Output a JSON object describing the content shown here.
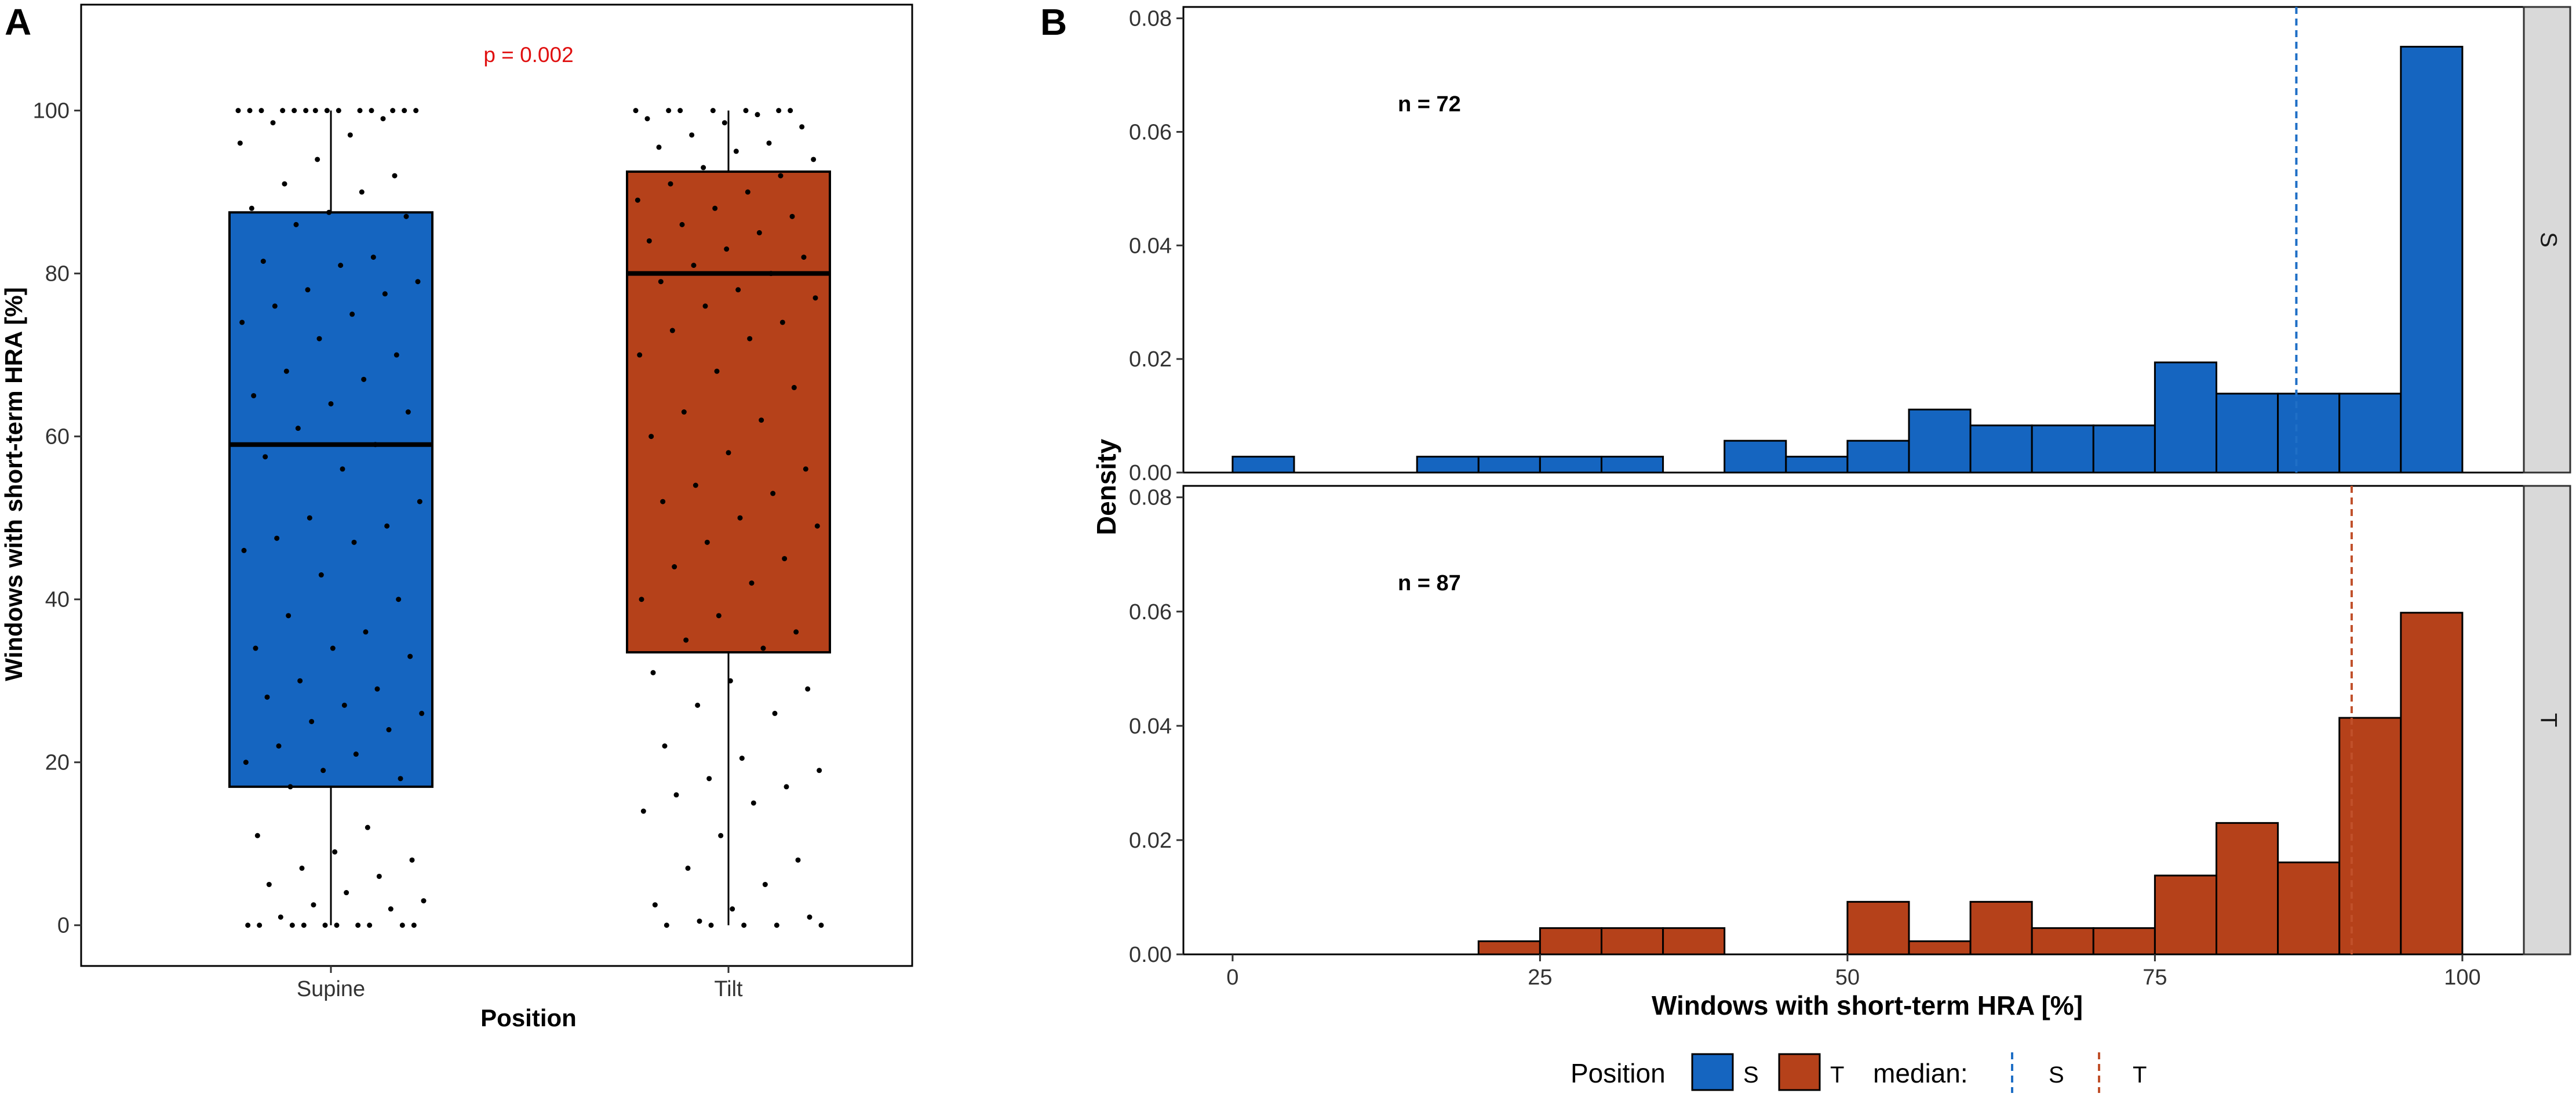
{
  "panel_a": {
    "letter": "A",
    "pvalue": "p = 0.002",
    "xlabel": "Position",
    "ylabel": "Windows with short-term HRA [%]",
    "chart_data": {
      "type": "box",
      "ylim": [
        -5,
        113
      ],
      "yticks": [
        0,
        20,
        40,
        60,
        80,
        100
      ],
      "categories": [
        "Supine",
        "Tilt"
      ],
      "boxes": [
        {
          "name": "Supine",
          "min": 0,
          "q1": 17,
          "median": 59,
          "q3": 87.5,
          "max": 100,
          "color": "#1565C0"
        },
        {
          "name": "Tilt",
          "min": 0,
          "q1": 33.5,
          "median": 80,
          "q3": 92.5,
          "max": 100,
          "color": "#B5411A"
        }
      ],
      "points": [
        [
          0,
          100
        ],
        [
          0,
          100
        ],
        [
          0,
          100
        ],
        [
          0,
          100
        ],
        [
          0,
          100
        ],
        [
          0,
          100
        ],
        [
          0,
          100
        ],
        [
          0,
          100
        ],
        [
          0,
          100
        ],
        [
          0,
          100
        ],
        [
          0,
          100
        ],
        [
          0,
          100
        ],
        [
          0,
          100
        ],
        [
          0,
          100
        ],
        [
          0,
          99
        ],
        [
          0,
          98.5
        ],
        [
          0,
          97
        ],
        [
          0,
          96
        ],
        [
          0,
          94
        ],
        [
          0,
          92
        ],
        [
          0,
          91
        ],
        [
          0,
          90
        ],
        [
          0,
          88
        ],
        [
          0,
          87.5
        ],
        [
          0,
          87
        ],
        [
          0,
          86
        ],
        [
          0,
          82
        ],
        [
          0,
          81.5
        ],
        [
          0,
          81
        ],
        [
          0,
          79
        ],
        [
          0,
          78
        ],
        [
          0,
          77.5
        ],
        [
          0,
          76
        ],
        [
          0,
          75
        ],
        [
          0,
          74
        ],
        [
          0,
          72
        ],
        [
          0,
          70
        ],
        [
          0,
          68
        ],
        [
          0,
          67
        ],
        [
          0,
          65
        ],
        [
          0,
          64
        ],
        [
          0,
          63
        ],
        [
          0,
          61
        ],
        [
          0,
          59
        ],
        [
          0,
          57.5
        ],
        [
          0,
          56
        ],
        [
          0,
          52
        ],
        [
          0,
          50
        ],
        [
          0,
          49
        ],
        [
          0,
          47.5
        ],
        [
          0,
          47
        ],
        [
          0,
          46
        ],
        [
          0,
          43
        ],
        [
          0,
          40
        ],
        [
          0,
          38
        ],
        [
          0,
          36
        ],
        [
          0,
          34
        ],
        [
          0,
          34
        ],
        [
          0,
          33
        ],
        [
          0,
          30
        ],
        [
          0,
          29
        ],
        [
          0,
          28
        ],
        [
          0,
          27
        ],
        [
          0,
          26
        ],
        [
          0,
          25
        ],
        [
          0,
          24
        ],
        [
          0,
          22
        ],
        [
          0,
          21
        ],
        [
          0,
          20
        ],
        [
          0,
          19
        ],
        [
          0,
          18
        ],
        [
          0,
          17
        ],
        [
          0,
          12
        ],
        [
          0,
          11
        ],
        [
          0,
          9
        ],
        [
          0,
          8
        ],
        [
          0,
          7
        ],
        [
          0,
          6
        ],
        [
          0,
          5
        ],
        [
          0,
          4
        ],
        [
          0,
          3
        ],
        [
          0,
          2.5
        ],
        [
          0,
          2
        ],
        [
          0,
          1
        ],
        [
          0,
          0
        ],
        [
          0,
          0
        ],
        [
          0,
          0
        ],
        [
          0,
          0
        ],
        [
          0,
          0
        ],
        [
          0,
          0
        ],
        [
          0,
          0
        ],
        [
          0,
          0
        ],
        [
          0,
          0
        ],
        [
          0,
          0
        ],
        [
          1,
          100
        ],
        [
          1,
          100
        ],
        [
          1,
          100
        ],
        [
          1,
          100
        ],
        [
          1,
          100
        ],
        [
          1,
          100
        ],
        [
          1,
          100
        ],
        [
          1,
          99.5
        ],
        [
          1,
          99
        ],
        [
          1,
          98.5
        ],
        [
          1,
          98
        ],
        [
          1,
          97
        ],
        [
          1,
          96
        ],
        [
          1,
          95.5
        ],
        [
          1,
          95
        ],
        [
          1,
          94
        ],
        [
          1,
          93
        ],
        [
          1,
          92
        ],
        [
          1,
          91
        ],
        [
          1,
          90
        ],
        [
          1,
          89
        ],
        [
          1,
          88
        ],
        [
          1,
          87
        ],
        [
          1,
          86
        ],
        [
          1,
          85
        ],
        [
          1,
          84
        ],
        [
          1,
          83
        ],
        [
          1,
          82
        ],
        [
          1,
          81
        ],
        [
          1,
          80
        ],
        [
          1,
          79
        ],
        [
          1,
          78
        ],
        [
          1,
          77
        ],
        [
          1,
          76
        ],
        [
          1,
          74
        ],
        [
          1,
          73
        ],
        [
          1,
          72
        ],
        [
          1,
          70
        ],
        [
          1,
          68
        ],
        [
          1,
          66
        ],
        [
          1,
          63
        ],
        [
          1,
          62
        ],
        [
          1,
          60
        ],
        [
          1,
          58
        ],
        [
          1,
          56
        ],
        [
          1,
          54
        ],
        [
          1,
          53
        ],
        [
          1,
          52
        ],
        [
          1,
          50
        ],
        [
          1,
          49
        ],
        [
          1,
          47
        ],
        [
          1,
          45
        ],
        [
          1,
          44
        ],
        [
          1,
          42
        ],
        [
          1,
          40
        ],
        [
          1,
          38
        ],
        [
          1,
          36
        ],
        [
          1,
          35
        ],
        [
          1,
          34
        ],
        [
          1,
          31
        ],
        [
          1,
          30
        ],
        [
          1,
          29
        ],
        [
          1,
          27
        ],
        [
          1,
          26
        ],
        [
          1,
          22
        ],
        [
          1,
          20.5
        ],
        [
          1,
          19
        ],
        [
          1,
          18
        ],
        [
          1,
          17
        ],
        [
          1,
          16
        ],
        [
          1,
          15
        ],
        [
          1,
          14
        ],
        [
          1,
          11
        ],
        [
          1,
          8
        ],
        [
          1,
          7
        ],
        [
          1,
          5
        ],
        [
          1,
          2.5
        ],
        [
          1,
          2
        ],
        [
          1,
          1
        ],
        [
          1,
          0.5
        ],
        [
          1,
          0
        ],
        [
          1,
          0
        ],
        [
          1,
          0
        ],
        [
          1,
          0
        ],
        [
          1,
          0
        ]
      ]
    }
  },
  "panel_b": {
    "letter": "B",
    "xlabel": "Windows with short-term HRA [%]",
    "ylabel": "Density",
    "chart_data": {
      "type": "histogram",
      "xlim": [
        -4,
        105
      ],
      "ylim": [
        0,
        0.082
      ],
      "xticks": [
        0,
        25,
        50,
        75,
        100
      ],
      "yticks": [
        0.0,
        0.02,
        0.04,
        0.06,
        0.08
      ],
      "ytick_labels": [
        "0.00",
        "0.02",
        "0.04",
        "0.06",
        "0.08"
      ],
      "bin_width": 5,
      "bin_starts": [
        0,
        5,
        10,
        15,
        20,
        25,
        30,
        35,
        40,
        45,
        50,
        55,
        60,
        65,
        70,
        75,
        80,
        85,
        90,
        95
      ],
      "facets": [
        {
          "strip": "S",
          "n_label": "n = 72",
          "color": "#1565C0",
          "median_color": "#1F6FC6",
          "median": 86.5,
          "density": [
            0.0028,
            0,
            0,
            0.0028,
            0.0028,
            0.0028,
            0.0028,
            0,
            0.0056,
            0.0028,
            0.0056,
            0.0111,
            0.0083,
            0.0083,
            0.0083,
            0.0194,
            0.0139,
            0.0139,
            0.0139,
            0.075
          ]
        },
        {
          "strip": "T",
          "n_label": "n = 87",
          "color": "#B5411A",
          "median_color": "#C0502A",
          "median": 91,
          "density": [
            0,
            0,
            0,
            0,
            0.0023,
            0.0046,
            0.0046,
            0.0046,
            0,
            0,
            0.0092,
            0.0023,
            0.0092,
            0.0046,
            0.0046,
            0.0138,
            0.023,
            0.0161,
            0.0414,
            0.0598
          ]
        }
      ]
    }
  },
  "legend": {
    "position_title": "Position",
    "position_items": [
      {
        "label": "S",
        "color": "#1565C0"
      },
      {
        "label": "T",
        "color": "#B5411A"
      }
    ],
    "median_title": "median:",
    "median_items": [
      {
        "label": "S",
        "color": "#1F6FC6"
      },
      {
        "label": "T",
        "color": "#C0502A"
      }
    ]
  }
}
